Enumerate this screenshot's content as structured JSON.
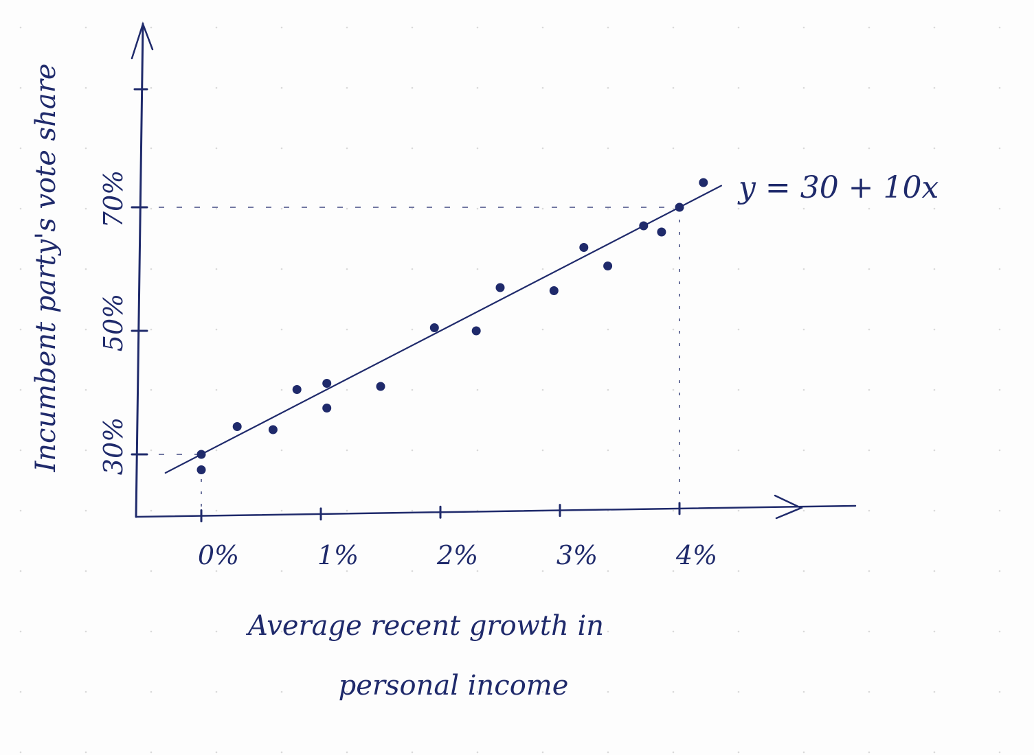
{
  "colors": {
    "ink": "#1f2a6b",
    "paper": "#fdfdfd",
    "dot_grid": "#d9d9d9"
  },
  "chart_data": {
    "type": "scatter",
    "title": "",
    "xlabel_line1": "Average recent growth in",
    "xlabel_line2": "personal income",
    "ylabel": "Incumbent party's vote share",
    "x_ticks": [
      {
        "value": 0,
        "label": "0%"
      },
      {
        "value": 1,
        "label": "1%"
      },
      {
        "value": 2,
        "label": "2%"
      },
      {
        "value": 3,
        "label": "3%"
      },
      {
        "value": 4,
        "label": "4%"
      }
    ],
    "y_ticks": [
      {
        "value": 30,
        "label": "30%"
      },
      {
        "value": 50,
        "label": "50%"
      },
      {
        "value": 70,
        "label": "70%"
      }
    ],
    "xlim": [
      -1.1,
      5.4
    ],
    "ylim": [
      20,
      100
    ],
    "points": [
      {
        "x": 0.0,
        "y": 30
      },
      {
        "x": 0.0,
        "y": 27.5
      },
      {
        "x": 0.3,
        "y": 34.5
      },
      {
        "x": 0.6,
        "y": 34
      },
      {
        "x": 0.8,
        "y": 40.5
      },
      {
        "x": 1.05,
        "y": 41.5
      },
      {
        "x": 1.05,
        "y": 37.5
      },
      {
        "x": 1.5,
        "y": 41
      },
      {
        "x": 1.95,
        "y": 50.5
      },
      {
        "x": 2.3,
        "y": 50
      },
      {
        "x": 2.5,
        "y": 57
      },
      {
        "x": 2.95,
        "y": 56.5
      },
      {
        "x": 3.2,
        "y": 63.5
      },
      {
        "x": 3.4,
        "y": 60.5
      },
      {
        "x": 3.7,
        "y": 67
      },
      {
        "x": 3.85,
        "y": 66
      },
      {
        "x": 4.0,
        "y": 70
      },
      {
        "x": 4.2,
        "y": 74
      }
    ],
    "fit_line": {
      "label": "y = 30 + 10x",
      "intercept": 30,
      "slope": 10,
      "x_range": [
        -0.3,
        4.35
      ]
    },
    "guides": [
      {
        "x": 0,
        "y": 30
      },
      {
        "x": 4,
        "y": 70
      }
    ],
    "grid": false,
    "legend": "none"
  }
}
